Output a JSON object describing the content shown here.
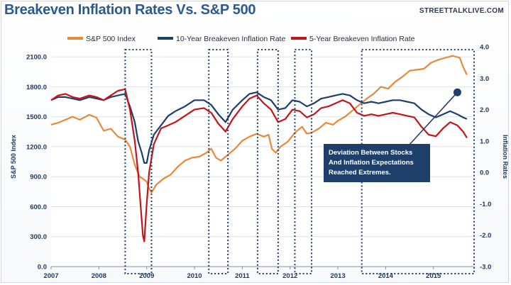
{
  "header": {
    "title": "Breakeven Inflation Rates Vs. S&P 500",
    "source": "STREETTALKLIVE.COM"
  },
  "chart_data": {
    "type": "line",
    "title": "Breakeven Inflation Rates Vs. S&P 500",
    "ylabel": "S&P 500 Index",
    "y2label": "Inflation Rates",
    "ylim": [
      0,
      2200
    ],
    "y2lim": [
      -3.0,
      4.0
    ],
    "xlim": [
      2007,
      2015.85
    ],
    "yticks": [
      0,
      300,
      600,
      900,
      1200,
      1500,
      1800,
      2100
    ],
    "ytick_labels": [
      "0.0",
      "300.0",
      "600.0",
      "900.0",
      "1200.0",
      "1500.0",
      "1800.0",
      "2100.0"
    ],
    "y2ticks": [
      -3,
      -2,
      -1,
      0,
      1,
      2,
      3,
      4
    ],
    "y2tick_labels": [
      "-3.0",
      "-2.0",
      "-1.0",
      "0.0",
      "1.0",
      "2.0",
      "3.0",
      "4.0"
    ],
    "xticks": [
      2007,
      2008,
      2009,
      2010,
      2011,
      2012,
      2013,
      2014,
      2015
    ],
    "xtick_labels": [
      "2007",
      "2008",
      "2009",
      "2010",
      "2011",
      "2012",
      "2013",
      "2014",
      "2015"
    ],
    "grid": "horizontal",
    "legend_position": "top",
    "series": [
      {
        "name": "S&P 500 Index",
        "axis": "left",
        "color": "#e8893a",
        "x": [
          2007.0,
          2007.15,
          2007.3,
          2007.45,
          2007.6,
          2007.8,
          2007.95,
          2008.1,
          2008.25,
          2008.4,
          2008.55,
          2008.65,
          2008.75,
          2008.85,
          2008.92,
          2009.0,
          2009.05,
          2009.1,
          2009.2,
          2009.35,
          2009.5,
          2009.65,
          2009.8,
          2009.95,
          2010.1,
          2010.25,
          2010.35,
          2010.45,
          2010.55,
          2010.7,
          2010.85,
          2011.0,
          2011.15,
          2011.3,
          2011.45,
          2011.55,
          2011.62,
          2011.7,
          2011.8,
          2011.95,
          2012.1,
          2012.25,
          2012.35,
          2012.45,
          2012.6,
          2012.75,
          2012.9,
          2013.0,
          2013.15,
          2013.3,
          2013.45,
          2013.6,
          2013.75,
          2013.9,
          2014.05,
          2014.2,
          2014.35,
          2014.5,
          2014.65,
          2014.8,
          2014.95,
          2015.1,
          2015.25,
          2015.4,
          2015.55,
          2015.62,
          2015.7
        ],
        "y": [
          1420,
          1440,
          1470,
          1500,
          1470,
          1520,
          1490,
          1360,
          1380,
          1300,
          1270,
          1200,
          1020,
          900,
          880,
          850,
          780,
          740,
          820,
          880,
          920,
          1000,
          1060,
          1090,
          1100,
          1140,
          1180,
          1090,
          1060,
          1120,
          1180,
          1260,
          1300,
          1330,
          1300,
          1320,
          1180,
          1140,
          1200,
          1250,
          1340,
          1400,
          1330,
          1340,
          1380,
          1440,
          1420,
          1460,
          1500,
          1560,
          1620,
          1680,
          1730,
          1800,
          1780,
          1850,
          1900,
          1960,
          1970,
          1980,
          2040,
          2070,
          2090,
          2110,
          2090,
          2000,
          1920
        ]
      },
      {
        "name": "10-Year Breakeven Inflation Rate",
        "axis": "right",
        "color": "#1f3f6b",
        "x": [
          2007.0,
          2007.15,
          2007.3,
          2007.45,
          2007.6,
          2007.8,
          2007.95,
          2008.1,
          2008.25,
          2008.4,
          2008.55,
          2008.65,
          2008.75,
          2008.82,
          2008.9,
          2008.95,
          2009.0,
          2009.05,
          2009.15,
          2009.3,
          2009.45,
          2009.6,
          2009.8,
          2010.0,
          2010.2,
          2010.35,
          2010.5,
          2010.65,
          2010.8,
          2011.0,
          2011.15,
          2011.3,
          2011.45,
          2011.6,
          2011.75,
          2011.9,
          2012.05,
          2012.2,
          2012.35,
          2012.5,
          2012.65,
          2012.8,
          2012.95,
          2013.1,
          2013.25,
          2013.4,
          2013.55,
          2013.7,
          2013.85,
          2014.0,
          2014.15,
          2014.3,
          2014.45,
          2014.6,
          2014.75,
          2014.9,
          2015.05,
          2015.2,
          2015.35,
          2015.5,
          2015.62,
          2015.7
        ],
        "y": [
          2.3,
          2.4,
          2.4,
          2.35,
          2.3,
          2.4,
          2.35,
          2.3,
          2.4,
          2.45,
          2.5,
          2.1,
          1.6,
          1.0,
          0.6,
          0.3,
          0.3,
          0.7,
          1.2,
          1.5,
          1.8,
          1.95,
          2.1,
          2.3,
          2.3,
          2.15,
          1.85,
          1.6,
          2.0,
          2.3,
          2.5,
          2.55,
          2.4,
          2.3,
          2.0,
          2.05,
          2.3,
          2.25,
          2.1,
          2.2,
          2.35,
          2.4,
          2.45,
          2.5,
          2.45,
          2.3,
          2.2,
          2.25,
          2.2,
          2.25,
          2.3,
          2.3,
          2.25,
          2.2,
          2.0,
          1.85,
          1.75,
          1.85,
          1.95,
          1.85,
          1.75,
          1.7
        ]
      },
      {
        "name": "5-Year Breakeven Inflation Rate",
        "axis": "right",
        "color": "#c3141b",
        "x": [
          2007.0,
          2007.15,
          2007.3,
          2007.45,
          2007.6,
          2007.8,
          2007.95,
          2008.1,
          2008.25,
          2008.4,
          2008.55,
          2008.65,
          2008.75,
          2008.82,
          2008.88,
          2008.92,
          2008.95,
          2009.0,
          2009.05,
          2009.15,
          2009.3,
          2009.45,
          2009.6,
          2009.8,
          2010.0,
          2010.2,
          2010.35,
          2010.5,
          2010.65,
          2010.8,
          2011.0,
          2011.15,
          2011.3,
          2011.45,
          2011.6,
          2011.75,
          2011.9,
          2012.05,
          2012.2,
          2012.35,
          2012.5,
          2012.65,
          2012.8,
          2012.95,
          2013.1,
          2013.25,
          2013.4,
          2013.55,
          2013.7,
          2013.85,
          2014.0,
          2014.15,
          2014.3,
          2014.45,
          2014.6,
          2014.75,
          2014.9,
          2015.05,
          2015.2,
          2015.35,
          2015.5,
          2015.62,
          2015.7
        ],
        "y": [
          2.3,
          2.45,
          2.5,
          2.4,
          2.35,
          2.45,
          2.4,
          2.3,
          2.45,
          2.6,
          2.65,
          2.0,
          1.0,
          0.0,
          -1.2,
          -2.0,
          -2.2,
          -1.0,
          0.0,
          0.9,
          1.4,
          1.5,
          1.6,
          1.8,
          2.0,
          2.05,
          1.9,
          1.55,
          1.3,
          1.7,
          2.1,
          2.35,
          2.45,
          2.2,
          2.0,
          1.6,
          1.7,
          2.0,
          1.95,
          1.75,
          1.85,
          2.05,
          2.1,
          2.2,
          2.3,
          2.2,
          1.9,
          1.8,
          1.85,
          1.8,
          1.85,
          1.9,
          1.85,
          1.8,
          1.75,
          1.45,
          1.2,
          1.15,
          1.4,
          1.6,
          1.5,
          1.3,
          1.1
        ]
      }
    ],
    "highlight_periods": [
      [
        2008.55,
        2009.1
      ],
      [
        2010.3,
        2010.7
      ],
      [
        2011.32,
        2011.75
      ],
      [
        2012.1,
        2012.45
      ],
      [
        2013.5,
        2015.85
      ]
    ],
    "annotation": {
      "text_lines": [
        "Deviation Between Stocks",
        "And Inflation Expectations",
        "Reached Extremes."
      ],
      "point_x": 2015.5,
      "point_y2": 2.55
    }
  }
}
